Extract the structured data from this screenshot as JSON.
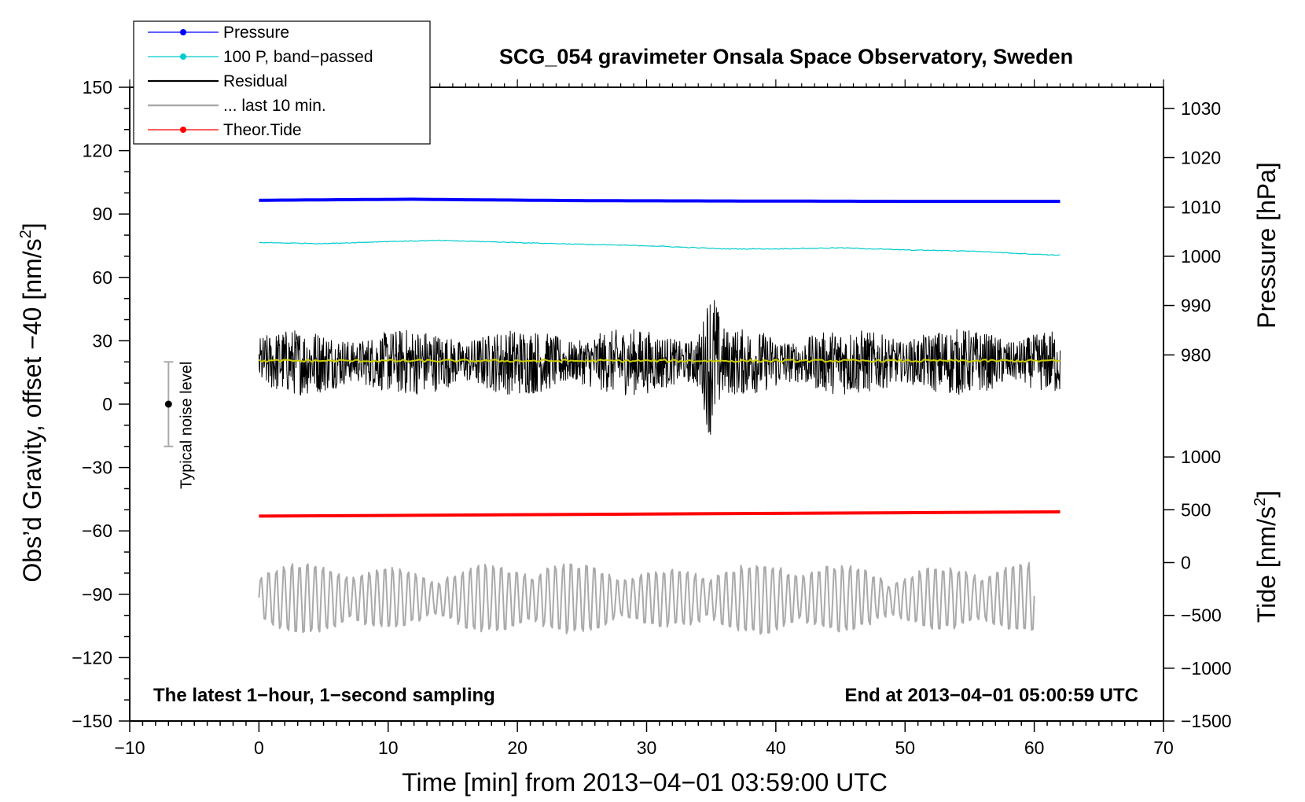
{
  "chart_data": {
    "type": "line",
    "title": "SCG_054 gravimeter Onsala Space Observatory, Sweden",
    "xlabel": "Time [min] from 2013−04−01 03:59:00 UTC",
    "ylabel_left": "Obs’d Gravity, offset −40 [nm/s",
    "ylabel_left_sup": "2",
    "ylabel_left_end": "]",
    "ylabel_right_pressure": "Pressure [hPa]",
    "ylabel_right_tide": "Tide [nm/s",
    "ylabel_right_tide_sup": "2",
    "ylabel_right_tide_end": "]",
    "xlim": [
      -10,
      70
    ],
    "ylim_left": [
      -150,
      150
    ],
    "x_ticks": [
      -10,
      0,
      10,
      20,
      30,
      40,
      50,
      60,
      70
    ],
    "x_tick_labels": [
      "−10",
      "0",
      "10",
      "20",
      "30",
      "40",
      "50",
      "60",
      "70"
    ],
    "y_left_ticks": [
      150,
      120,
      90,
      60,
      30,
      0,
      -30,
      -60,
      -90,
      -120,
      -150
    ],
    "y_left_tick_labels": [
      "150",
      "120",
      "90",
      "60",
      "30",
      "0",
      "−30",
      "−60",
      "−90",
      "−120",
      "−150"
    ],
    "pressure_axis": {
      "ticks": [
        1030,
        1020,
        1010,
        1000,
        990,
        980
      ],
      "tick_labels": [
        "1030",
        "1020",
        "1010",
        "1000",
        "990",
        "980"
      ],
      "left_equiv": [
        140,
        116.7,
        93.3,
        70,
        46.7,
        23.3
      ]
    },
    "tide_axis": {
      "ticks": [
        1000,
        500,
        0,
        -500,
        -1000,
        -1500
      ],
      "tick_labels": [
        "1000",
        "500",
        "0",
        "−500",
        "−1000",
        "−1500"
      ],
      "left_equiv": [
        -25,
        -50,
        -75,
        -100,
        -125,
        -150
      ]
    },
    "legend": {
      "placement": "top-left",
      "entries": [
        {
          "label": "Pressure",
          "color": "#0000ff",
          "marker": true
        },
        {
          "label": "100 P, band−passed",
          "color": "#00cccc",
          "marker": true
        },
        {
          "label": "Residual",
          "color": "#000000",
          "marker": false
        },
        {
          "label": "... last 10 min.",
          "color": "#aaaaaa",
          "marker": false
        },
        {
          "label": "Theor.Tide",
          "color": "#ff0000",
          "marker": true
        }
      ]
    },
    "series": [
      {
        "name": "Pressure",
        "color": "#0000ff",
        "x": [
          0,
          12,
          15,
          26,
          50,
          62
        ],
        "y": [
          96.5,
          97,
          96.8,
          96.3,
          96,
          96
        ]
      },
      {
        "name": "100 P, band−passed",
        "color": "#00cccc",
        "x": [
          0,
          5,
          10,
          14,
          20,
          26,
          30,
          36,
          40,
          45,
          50,
          55,
          60,
          62
        ],
        "y": [
          76.5,
          76,
          77,
          77.5,
          76.5,
          75.5,
          75,
          73.5,
          73.5,
          74,
          73,
          72.5,
          71,
          70.5
        ]
      },
      {
        "name": "Residual",
        "color": "#000000",
        "x_range": [
          0,
          62
        ],
        "center": 20,
        "amplitude_typical": 15,
        "amplitude_peak": 38,
        "peak_at": 35
      },
      {
        "name": "Residual smoothed",
        "color": "#cccc00",
        "x_range": [
          0,
          62
        ],
        "y": 20.5
      },
      {
        "name": "... last 10 min.",
        "color": "#aaaaaa",
        "x_range": [
          0,
          60
        ],
        "center": -92,
        "amplitude_typical": 12,
        "amplitude_peak": 28
      },
      {
        "name": "Theor.Tide",
        "color": "#ff0000",
        "x": [
          0,
          62
        ],
        "y": [
          -53,
          -51
        ]
      }
    ],
    "noise_bar": {
      "label": "Typical noise level",
      "x": -7,
      "center": 0,
      "half_range": 20
    },
    "annotations": {
      "left": "The latest 1−hour, 1−second sampling",
      "right": "End at 2013−04−01 05:00:59 UTC"
    }
  }
}
